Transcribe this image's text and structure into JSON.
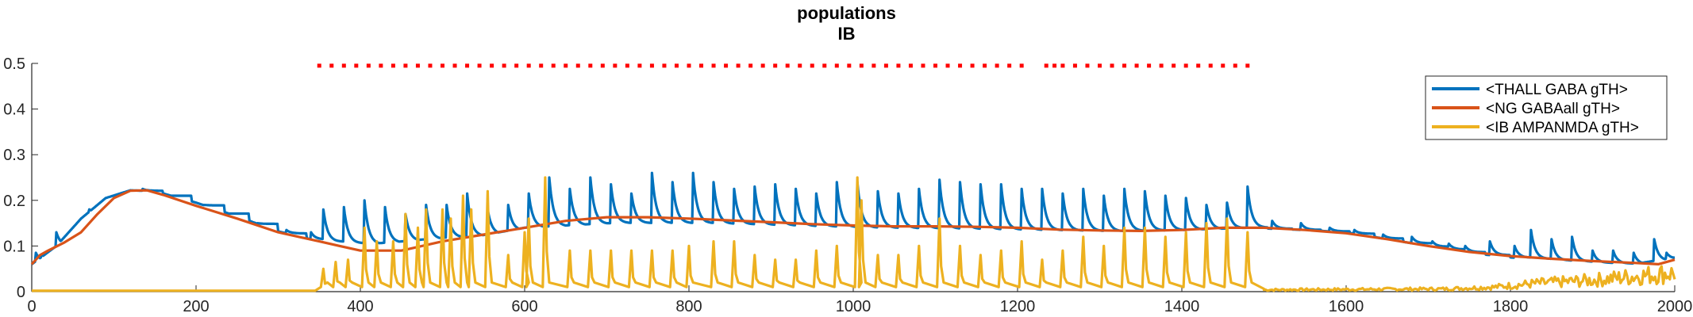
{
  "chart_data": {
    "type": "line",
    "title": [
      "populations",
      "IB"
    ],
    "xlabel": "",
    "ylabel": "",
    "xlim": [
      0,
      2000
    ],
    "ylim": [
      0,
      0.5
    ],
    "xticks": [
      0,
      200,
      400,
      600,
      800,
      1000,
      1200,
      1400,
      1600,
      1800,
      2000
    ],
    "xtick_labels": [
      "0",
      "200",
      "400",
      "600",
      "800",
      "1000",
      "1200",
      "1400",
      "1600",
      "1800",
      "2000"
    ],
    "yticks": [
      0,
      0.1,
      0.2,
      0.3,
      0.4,
      0.5
    ],
    "ytick_labels": [
      "0",
      "0.1",
      "0.2",
      "0.3",
      "0.4",
      "0.5"
    ],
    "grid": false,
    "legend_position": "top-right",
    "colors": {
      "thall": "#0072BD",
      "ng": "#D95319",
      "ib": "#EDB120",
      "markers": "#FF0000"
    },
    "series": [
      {
        "name": "<THALL GABA gTH>",
        "color": "#0072BD",
        "baseline": [
          [
            0,
            0.06
          ],
          [
            30,
            0.1
          ],
          [
            60,
            0.16
          ],
          [
            90,
            0.205
          ],
          [
            120,
            0.222
          ],
          [
            150,
            0.22
          ],
          [
            200,
            0.195
          ],
          [
            250,
            0.165
          ],
          [
            300,
            0.132
          ],
          [
            350,
            0.11
          ],
          [
            400,
            0.103
          ],
          [
            450,
            0.11
          ],
          [
            500,
            0.118
          ],
          [
            550,
            0.124
          ],
          [
            600,
            0.14
          ],
          [
            700,
            0.15
          ],
          [
            800,
            0.15
          ],
          [
            900,
            0.145
          ],
          [
            1000,
            0.14
          ],
          [
            1100,
            0.138
          ],
          [
            1200,
            0.135
          ],
          [
            1300,
            0.132
          ],
          [
            1400,
            0.135
          ],
          [
            1480,
            0.14
          ],
          [
            1550,
            0.135
          ],
          [
            1600,
            0.13
          ],
          [
            1650,
            0.115
          ],
          [
            1700,
            0.1
          ],
          [
            1750,
            0.085
          ],
          [
            1800,
            0.075
          ],
          [
            1850,
            0.068
          ],
          [
            1900,
            0.063
          ],
          [
            1950,
            0.06
          ],
          [
            2000,
            0.075
          ]
        ],
        "spikes": [
          [
            5,
            0.085
          ],
          [
            12,
            0.08
          ],
          [
            18,
            0.065
          ],
          [
            30,
            0.13
          ],
          [
            50,
            0.12
          ],
          [
            70,
            0.18
          ],
          [
            85,
            0.19
          ],
          [
            100,
            0.2
          ],
          [
            135,
            0.225
          ],
          [
            170,
            0.21
          ],
          [
            210,
            0.19
          ],
          [
            240,
            0.17
          ],
          [
            275,
            0.15
          ],
          [
            310,
            0.135
          ],
          [
            340,
            0.13
          ],
          [
            355,
            0.18
          ],
          [
            380,
            0.185
          ],
          [
            405,
            0.2
          ],
          [
            430,
            0.185
          ],
          [
            455,
            0.17
          ],
          [
            480,
            0.19
          ],
          [
            505,
            0.19
          ],
          [
            530,
            0.215
          ],
          [
            555,
            0.18
          ],
          [
            580,
            0.19
          ],
          [
            605,
            0.215
          ],
          [
            630,
            0.25
          ],
          [
            655,
            0.225
          ],
          [
            680,
            0.25
          ],
          [
            705,
            0.235
          ],
          [
            730,
            0.215
          ],
          [
            755,
            0.26
          ],
          [
            780,
            0.24
          ],
          [
            805,
            0.26
          ],
          [
            830,
            0.24
          ],
          [
            855,
            0.225
          ],
          [
            880,
            0.23
          ],
          [
            905,
            0.235
          ],
          [
            930,
            0.225
          ],
          [
            955,
            0.215
          ],
          [
            980,
            0.24
          ],
          [
            1005,
            0.24
          ],
          [
            1030,
            0.22
          ],
          [
            1055,
            0.215
          ],
          [
            1080,
            0.225
          ],
          [
            1105,
            0.245
          ],
          [
            1130,
            0.24
          ],
          [
            1155,
            0.235
          ],
          [
            1180,
            0.235
          ],
          [
            1205,
            0.225
          ],
          [
            1230,
            0.225
          ],
          [
            1255,
            0.215
          ],
          [
            1280,
            0.225
          ],
          [
            1305,
            0.21
          ],
          [
            1330,
            0.225
          ],
          [
            1355,
            0.22
          ],
          [
            1380,
            0.21
          ],
          [
            1405,
            0.205
          ],
          [
            1430,
            0.19
          ],
          [
            1455,
            0.195
          ],
          [
            1480,
            0.23
          ],
          [
            1510,
            0.155
          ],
          [
            1545,
            0.15
          ],
          [
            1580,
            0.14
          ],
          [
            1610,
            0.135
          ],
          [
            1645,
            0.125
          ],
          [
            1680,
            0.12
          ],
          [
            1705,
            0.11
          ],
          [
            1725,
            0.105
          ],
          [
            1745,
            0.1
          ],
          [
            1775,
            0.11
          ],
          [
            1805,
            0.1
          ],
          [
            1825,
            0.135
          ],
          [
            1850,
            0.115
          ],
          [
            1875,
            0.12
          ],
          [
            1900,
            0.09
          ],
          [
            1925,
            0.09
          ],
          [
            1950,
            0.085
          ],
          [
            1975,
            0.115
          ],
          [
            1990,
            0.085
          ]
        ]
      },
      {
        "name": "<NG GABAall gTH>",
        "color": "#D95319",
        "points": [
          [
            0,
            0.06
          ],
          [
            10,
            0.08
          ],
          [
            20,
            0.09
          ],
          [
            40,
            0.108
          ],
          [
            60,
            0.13
          ],
          [
            80,
            0.17
          ],
          [
            100,
            0.205
          ],
          [
            120,
            0.221
          ],
          [
            140,
            0.222
          ],
          [
            160,
            0.212
          ],
          [
            200,
            0.188
          ],
          [
            250,
            0.16
          ],
          [
            300,
            0.13
          ],
          [
            350,
            0.11
          ],
          [
            375,
            0.1
          ],
          [
            400,
            0.09
          ],
          [
            450,
            0.09
          ],
          [
            500,
            0.11
          ],
          [
            550,
            0.125
          ],
          [
            600,
            0.14
          ],
          [
            650,
            0.155
          ],
          [
            700,
            0.163
          ],
          [
            750,
            0.163
          ],
          [
            800,
            0.16
          ],
          [
            850,
            0.156
          ],
          [
            900,
            0.152
          ],
          [
            950,
            0.148
          ],
          [
            1000,
            0.145
          ],
          [
            1050,
            0.143
          ],
          [
            1100,
            0.143
          ],
          [
            1150,
            0.142
          ],
          [
            1200,
            0.14
          ],
          [
            1250,
            0.136
          ],
          [
            1300,
            0.134
          ],
          [
            1350,
            0.133
          ],
          [
            1400,
            0.135
          ],
          [
            1450,
            0.14
          ],
          [
            1500,
            0.14
          ],
          [
            1550,
            0.135
          ],
          [
            1600,
            0.128
          ],
          [
            1650,
            0.115
          ],
          [
            1700,
            0.1
          ],
          [
            1750,
            0.087
          ],
          [
            1800,
            0.078
          ],
          [
            1850,
            0.072
          ],
          [
            1900,
            0.067
          ],
          [
            1950,
            0.063
          ],
          [
            1980,
            0.06
          ],
          [
            2000,
            0.07
          ]
        ]
      },
      {
        "name": "<IB AMPANMDA gTH>",
        "color": "#EDB120",
        "spikes": [
          [
            355,
            0.05
          ],
          [
            370,
            0.065
          ],
          [
            385,
            0.07
          ],
          [
            405,
            0.14
          ],
          [
            420,
            0.11
          ],
          [
            440,
            0.11
          ],
          [
            455,
            0.17
          ],
          [
            470,
            0.14
          ],
          [
            480,
            0.18
          ],
          [
            500,
            0.18
          ],
          [
            510,
            0.16
          ],
          [
            525,
            0.21
          ],
          [
            535,
            0.18
          ],
          [
            555,
            0.22
          ],
          [
            580,
            0.08
          ],
          [
            600,
            0.13
          ],
          [
            605,
            0.16
          ],
          [
            625,
            0.25
          ],
          [
            655,
            0.09
          ],
          [
            680,
            0.09
          ],
          [
            705,
            0.09
          ],
          [
            730,
            0.09
          ],
          [
            755,
            0.09
          ],
          [
            780,
            0.09
          ],
          [
            800,
            0.1
          ],
          [
            830,
            0.11
          ],
          [
            855,
            0.11
          ],
          [
            880,
            0.08
          ],
          [
            905,
            0.07
          ],
          [
            930,
            0.07
          ],
          [
            955,
            0.09
          ],
          [
            980,
            0.1
          ],
          [
            1005,
            0.25
          ],
          [
            1010,
            0.2
          ],
          [
            1030,
            0.08
          ],
          [
            1055,
            0.08
          ],
          [
            1080,
            0.1
          ],
          [
            1105,
            0.16
          ],
          [
            1130,
            0.1
          ],
          [
            1155,
            0.08
          ],
          [
            1180,
            0.09
          ],
          [
            1205,
            0.11
          ],
          [
            1230,
            0.07
          ],
          [
            1255,
            0.09
          ],
          [
            1280,
            0.12
          ],
          [
            1305,
            0.1
          ],
          [
            1330,
            0.14
          ],
          [
            1355,
            0.14
          ],
          [
            1380,
            0.12
          ],
          [
            1405,
            0.13
          ],
          [
            1430,
            0.15
          ],
          [
            1455,
            0.16
          ],
          [
            1480,
            0.13
          ]
        ],
        "noise": [
          [
            1720,
            0.006
          ],
          [
            1780,
            0.01
          ],
          [
            1830,
            0.018
          ],
          [
            1900,
            0.025
          ],
          [
            1960,
            0.035
          ],
          [
            1990,
            0.04
          ]
        ]
      }
    ],
    "markers": {
      "y": 0.495,
      "style": "red dots",
      "x": [
        350,
        365,
        380,
        395,
        410,
        425,
        440,
        455,
        470,
        485,
        500,
        515,
        530,
        545,
        560,
        575,
        590,
        605,
        620,
        635,
        650,
        665,
        680,
        695,
        710,
        725,
        740,
        755,
        770,
        785,
        800,
        815,
        830,
        845,
        860,
        875,
        890,
        905,
        920,
        935,
        950,
        965,
        980,
        995,
        1010,
        1025,
        1040,
        1055,
        1070,
        1085,
        1100,
        1115,
        1130,
        1145,
        1160,
        1175,
        1190,
        1205,
        1235,
        1245,
        1255,
        1270,
        1285,
        1300,
        1315,
        1330,
        1345,
        1360,
        1375,
        1390,
        1405,
        1420,
        1435,
        1450,
        1465,
        1480
      ]
    }
  }
}
